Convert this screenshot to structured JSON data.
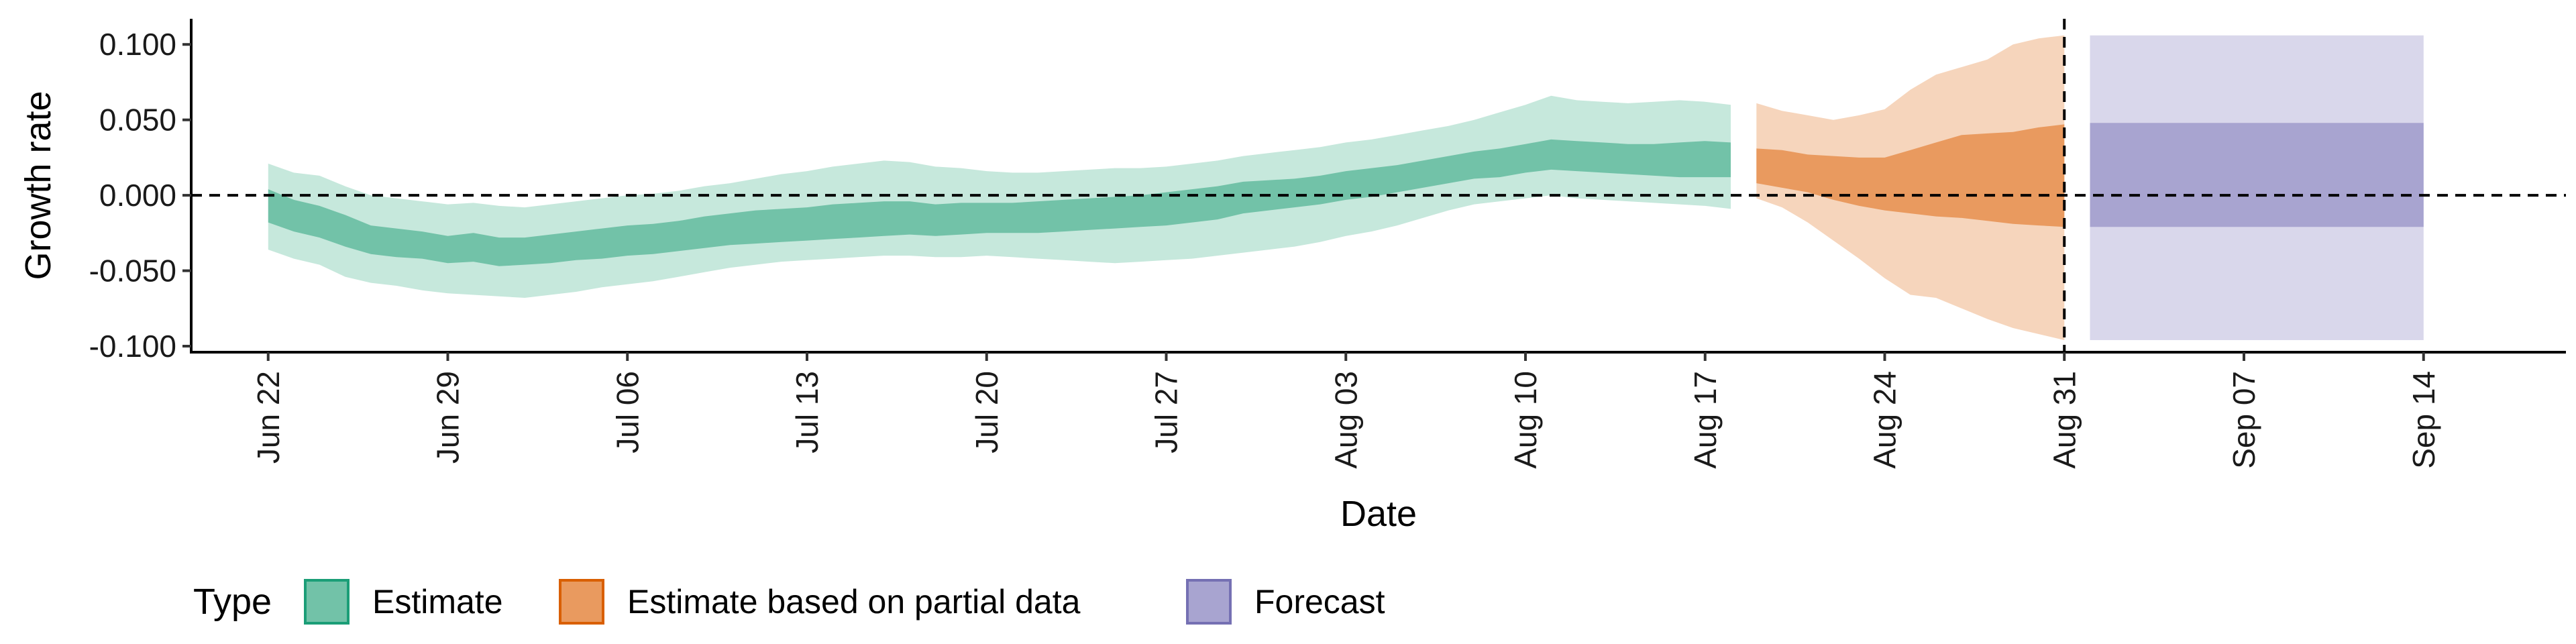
{
  "chart_data": {
    "type": "area",
    "xlabel": "Date",
    "ylabel": "Growth rate",
    "ylim": [
      -0.104,
      0.117
    ],
    "y_ticks": [
      "0.100",
      "0.050",
      "0.000",
      "-0.050",
      "-0.100"
    ],
    "y_tick_values": [
      0.1,
      0.05,
      0.0,
      -0.05,
      -0.1
    ],
    "x_range": [
      "2020-06-19",
      "2020-09-18"
    ],
    "x_ticks": [
      "Jun 22",
      "Jun 29",
      "Jul 06",
      "Jul 13",
      "Jul 20",
      "Jul 27",
      "Aug 03",
      "Aug 10",
      "Aug 17",
      "Aug 24",
      "Aug 31",
      "Sep 07",
      "Sep 14"
    ],
    "x_tick_dates": [
      "2020-06-22",
      "2020-06-29",
      "2020-07-06",
      "2020-07-13",
      "2020-07-20",
      "2020-07-27",
      "2020-08-03",
      "2020-08-10",
      "2020-08-17",
      "2020-08-24",
      "2020-08-31",
      "2020-09-07",
      "2020-09-14"
    ],
    "reference_lines": {
      "horizontal_y": 0,
      "vertical_date": "2020-08-31"
    },
    "grid": false,
    "legend_position": "bottom-left",
    "legend": {
      "title": "Type",
      "items": [
        {
          "label": "Estimate",
          "color": "#72c2a8",
          "border": "#1b9e77"
        },
        {
          "label": "Estimate based on partial data",
          "color": "#e99a5f",
          "border": "#d95f02"
        },
        {
          "label": "Forecast",
          "color": "#a8a4d0",
          "border": "#7570b3"
        }
      ]
    },
    "series": [
      {
        "type_label": "Estimate",
        "color": "#72c2a8",
        "light_color": "#c6e8dc",
        "points": [
          [
            "2020-06-22",
            -0.036,
            -0.018,
            0.004,
            0.021
          ],
          [
            "2020-06-23",
            -0.042,
            -0.024,
            -0.003,
            0.015
          ],
          [
            "2020-06-24",
            -0.046,
            -0.028,
            -0.007,
            0.013
          ],
          [
            "2020-06-25",
            -0.054,
            -0.034,
            -0.013,
            0.006
          ],
          [
            "2020-06-26",
            -0.058,
            -0.039,
            -0.02,
            0.0
          ],
          [
            "2020-06-27",
            -0.06,
            -0.041,
            -0.022,
            -0.002
          ],
          [
            "2020-06-28",
            -0.063,
            -0.042,
            -0.024,
            -0.004
          ],
          [
            "2020-06-29",
            -0.065,
            -0.045,
            -0.027,
            -0.006
          ],
          [
            "2020-06-30",
            -0.066,
            -0.044,
            -0.025,
            -0.005
          ],
          [
            "2020-07-01",
            -0.067,
            -0.047,
            -0.028,
            -0.007
          ],
          [
            "2020-07-02",
            -0.068,
            -0.046,
            -0.028,
            -0.008
          ],
          [
            "2020-07-03",
            -0.066,
            -0.045,
            -0.026,
            -0.006
          ],
          [
            "2020-07-04",
            -0.064,
            -0.043,
            -0.024,
            -0.004
          ],
          [
            "2020-07-05",
            -0.061,
            -0.042,
            -0.022,
            -0.002
          ],
          [
            "2020-07-06",
            -0.059,
            -0.04,
            -0.02,
            0.0
          ],
          [
            "2020-07-07",
            -0.057,
            -0.039,
            -0.019,
            0.001
          ],
          [
            "2020-07-08",
            -0.054,
            -0.037,
            -0.017,
            0.003
          ],
          [
            "2020-07-09",
            -0.051,
            -0.035,
            -0.014,
            0.006
          ],
          [
            "2020-07-10",
            -0.048,
            -0.033,
            -0.012,
            0.008
          ],
          [
            "2020-07-11",
            -0.046,
            -0.032,
            -0.01,
            0.011
          ],
          [
            "2020-07-12",
            -0.044,
            -0.031,
            -0.009,
            0.014
          ],
          [
            "2020-07-13",
            -0.043,
            -0.03,
            -0.008,
            0.016
          ],
          [
            "2020-07-14",
            -0.042,
            -0.029,
            -0.006,
            0.019
          ],
          [
            "2020-07-15",
            -0.041,
            -0.028,
            -0.005,
            0.021
          ],
          [
            "2020-07-16",
            -0.04,
            -0.027,
            -0.004,
            0.023
          ],
          [
            "2020-07-17",
            -0.04,
            -0.026,
            -0.004,
            0.022
          ],
          [
            "2020-07-18",
            -0.041,
            -0.027,
            -0.006,
            0.019
          ],
          [
            "2020-07-19",
            -0.041,
            -0.026,
            -0.005,
            0.018
          ],
          [
            "2020-07-20",
            -0.04,
            -0.025,
            -0.005,
            0.016
          ],
          [
            "2020-07-21",
            -0.041,
            -0.025,
            -0.005,
            0.015
          ],
          [
            "2020-07-22",
            -0.042,
            -0.025,
            -0.004,
            0.015
          ],
          [
            "2020-07-23",
            -0.043,
            -0.024,
            -0.003,
            0.016
          ],
          [
            "2020-07-24",
            -0.044,
            -0.023,
            -0.002,
            0.017
          ],
          [
            "2020-07-25",
            -0.045,
            -0.022,
            -0.001,
            0.018
          ],
          [
            "2020-07-26",
            -0.044,
            -0.021,
            0.0,
            0.018
          ],
          [
            "2020-07-27",
            -0.043,
            -0.02,
            0.002,
            0.019
          ],
          [
            "2020-07-28",
            -0.042,
            -0.018,
            0.004,
            0.021
          ],
          [
            "2020-07-29",
            -0.04,
            -0.016,
            0.006,
            0.023
          ],
          [
            "2020-07-30",
            -0.038,
            -0.012,
            0.009,
            0.026
          ],
          [
            "2020-07-31",
            -0.036,
            -0.01,
            0.01,
            0.028
          ],
          [
            "2020-08-01",
            -0.034,
            -0.008,
            0.011,
            0.03
          ],
          [
            "2020-08-02",
            -0.031,
            -0.006,
            0.013,
            0.032
          ],
          [
            "2020-08-03",
            -0.027,
            -0.003,
            0.016,
            0.035
          ],
          [
            "2020-08-04",
            -0.024,
            -0.001,
            0.018,
            0.037
          ],
          [
            "2020-08-05",
            -0.02,
            0.002,
            0.02,
            0.04
          ],
          [
            "2020-08-06",
            -0.015,
            0.005,
            0.023,
            0.043
          ],
          [
            "2020-08-07",
            -0.01,
            0.008,
            0.026,
            0.046
          ],
          [
            "2020-08-08",
            -0.006,
            0.011,
            0.029,
            0.05
          ],
          [
            "2020-08-09",
            -0.004,
            0.012,
            0.031,
            0.055
          ],
          [
            "2020-08-10",
            -0.002,
            0.015,
            0.034,
            0.06
          ],
          [
            "2020-08-11",
            0.0,
            0.017,
            0.037,
            0.066
          ],
          [
            "2020-08-12",
            -0.002,
            0.016,
            0.036,
            0.063
          ],
          [
            "2020-08-13",
            -0.003,
            0.015,
            0.035,
            0.062
          ],
          [
            "2020-08-14",
            -0.004,
            0.014,
            0.034,
            0.061
          ],
          [
            "2020-08-15",
            -0.005,
            0.013,
            0.034,
            0.062
          ],
          [
            "2020-08-16",
            -0.006,
            0.012,
            0.035,
            0.063
          ],
          [
            "2020-08-17",
            -0.007,
            0.012,
            0.036,
            0.062
          ],
          [
            "2020-08-18",
            -0.009,
            0.012,
            0.035,
            0.06
          ]
        ]
      },
      {
        "type_label": "Estimate based on partial data",
        "color": "#e99a5f",
        "light_color": "#f6d5bc",
        "points": [
          [
            "2020-08-19",
            -0.002,
            0.008,
            0.031,
            0.061
          ],
          [
            "2020-08-20",
            -0.008,
            0.005,
            0.03,
            0.056
          ],
          [
            "2020-08-21",
            -0.018,
            0.002,
            0.027,
            0.053
          ],
          [
            "2020-08-22",
            -0.03,
            -0.003,
            0.026,
            0.05
          ],
          [
            "2020-08-23",
            -0.042,
            -0.007,
            0.025,
            0.053
          ],
          [
            "2020-08-24",
            -0.055,
            -0.01,
            0.025,
            0.057
          ],
          [
            "2020-08-25",
            -0.066,
            -0.012,
            0.03,
            0.07
          ],
          [
            "2020-08-26",
            -0.068,
            -0.014,
            0.035,
            0.08
          ],
          [
            "2020-08-27",
            -0.075,
            -0.015,
            0.04,
            0.085
          ],
          [
            "2020-08-28",
            -0.082,
            -0.017,
            0.041,
            0.09
          ],
          [
            "2020-08-29",
            -0.088,
            -0.019,
            0.042,
            0.1
          ],
          [
            "2020-08-30",
            -0.092,
            -0.02,
            0.045,
            0.104
          ],
          [
            "2020-08-31",
            -0.096,
            -0.021,
            0.047,
            0.106
          ]
        ]
      },
      {
        "type_label": "Forecast",
        "color": "#a8a4d0",
        "light_color": "#d9d7eb",
        "points": [
          [
            "2020-09-01",
            -0.096,
            -0.021,
            0.048,
            0.106
          ],
          [
            "2020-09-14",
            -0.096,
            -0.021,
            0.048,
            0.106
          ]
        ]
      }
    ]
  }
}
